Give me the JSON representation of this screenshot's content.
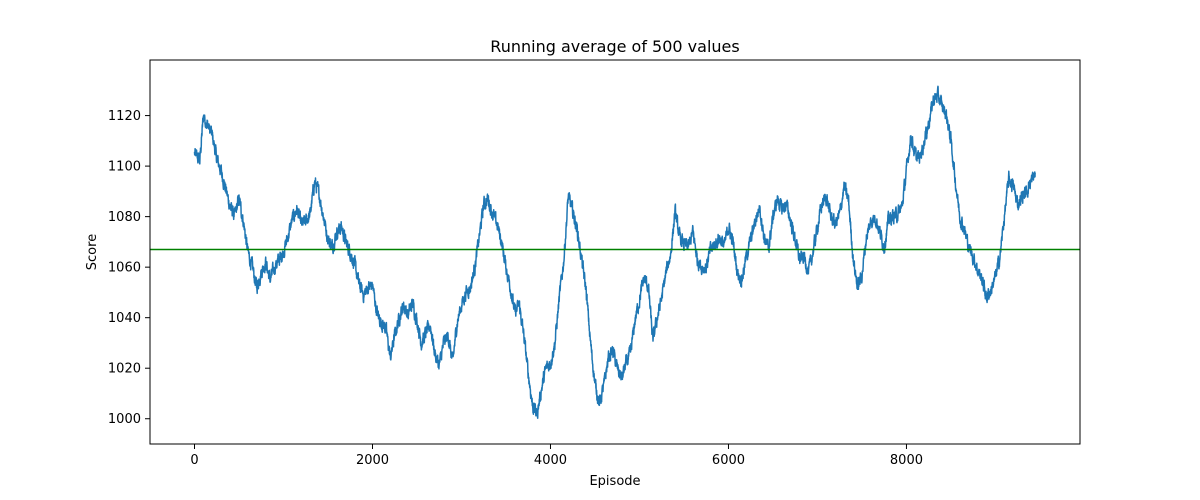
{
  "chart_data": {
    "type": "line",
    "title": "Running average of 500 values",
    "xlabel": "Episode",
    "ylabel": "Score",
    "xlim": [
      -500,
      9950
    ],
    "ylim": [
      990,
      1142
    ],
    "xticks": [
      0,
      2000,
      4000,
      6000,
      8000
    ],
    "yticks": [
      1000,
      1020,
      1040,
      1060,
      1080,
      1100,
      1120
    ],
    "grid": false,
    "legend": "none",
    "series": [
      {
        "color": "#1f77b4",
        "x": [
          0,
          60,
          100,
          150,
          200,
          250,
          300,
          350,
          400,
          450,
          500,
          550,
          600,
          650,
          700,
          750,
          800,
          850,
          900,
          950,
          1000,
          1050,
          1100,
          1150,
          1200,
          1250,
          1300,
          1350,
          1400,
          1450,
          1500,
          1550,
          1600,
          1650,
          1700,
          1750,
          1800,
          1850,
          1900,
          1950,
          2000,
          2050,
          2100,
          2150,
          2200,
          2250,
          2300,
          2350,
          2400,
          2450,
          2500,
          2550,
          2600,
          2650,
          2700,
          2750,
          2800,
          2850,
          2900,
          2950,
          3000,
          3050,
          3100,
          3150,
          3200,
          3250,
          3300,
          3350,
          3400,
          3450,
          3500,
          3550,
          3600,
          3650,
          3700,
          3750,
          3800,
          3850,
          3900,
          3950,
          4000,
          4050,
          4100,
          4150,
          4200,
          4250,
          4300,
          4350,
          4400,
          4450,
          4500,
          4550,
          4600,
          4650,
          4700,
          4750,
          4800,
          4850,
          4900,
          4950,
          5000,
          5050,
          5100,
          5150,
          5200,
          5250,
          5300,
          5350,
          5400,
          5450,
          5500,
          5550,
          5600,
          5650,
          5700,
          5750,
          5800,
          5850,
          5900,
          5950,
          6000,
          6050,
          6100,
          6150,
          6200,
          6250,
          6300,
          6350,
          6400,
          6450,
          6500,
          6550,
          6600,
          6650,
          6700,
          6750,
          6800,
          6850,
          6900,
          6950,
          7000,
          7050,
          7100,
          7150,
          7200,
          7250,
          7300,
          7350,
          7400,
          7450,
          7500,
          7550,
          7600,
          7650,
          7700,
          7750,
          7800,
          7850,
          7900,
          7950,
          8000,
          8050,
          8100,
          8150,
          8200,
          8250,
          8300,
          8350,
          8400,
          8450,
          8500,
          8550,
          8600,
          8650,
          8700,
          8750,
          8800,
          8850,
          8900,
          8950,
          9000,
          9050,
          9100,
          9150,
          9200,
          9250,
          9300,
          9350,
          9400,
          9450
        ],
        "y": [
          1105,
          1102,
          1120,
          1116,
          1112,
          1103,
          1098,
          1091,
          1084,
          1080,
          1087,
          1078,
          1066,
          1060,
          1052,
          1058,
          1062,
          1055,
          1060,
          1063,
          1066,
          1072,
          1079,
          1083,
          1077,
          1078,
          1081,
          1094,
          1089,
          1080,
          1071,
          1068,
          1074,
          1076,
          1070,
          1066,
          1061,
          1053,
          1049,
          1052,
          1053,
          1042,
          1038,
          1036,
          1024,
          1033,
          1040,
          1045,
          1041,
          1046,
          1039,
          1030,
          1034,
          1037,
          1026,
          1021,
          1030,
          1033,
          1022,
          1038,
          1045,
          1050,
          1052,
          1060,
          1072,
          1085,
          1087,
          1081,
          1077,
          1070,
          1060,
          1052,
          1042,
          1045,
          1033,
          1018,
          1005,
          1002,
          1012,
          1020,
          1022,
          1030,
          1048,
          1063,
          1088,
          1082,
          1075,
          1063,
          1051,
          1030,
          1014,
          1006,
          1013,
          1024,
          1027,
          1020,
          1016,
          1022,
          1026,
          1039,
          1047,
          1056,
          1052,
          1031,
          1040,
          1048,
          1058,
          1065,
          1082,
          1072,
          1069,
          1068,
          1074,
          1063,
          1060,
          1060,
          1067,
          1069,
          1072,
          1068,
          1076,
          1070,
          1058,
          1055,
          1064,
          1071,
          1078,
          1084,
          1072,
          1067,
          1080,
          1087,
          1083,
          1085,
          1078,
          1071,
          1063,
          1064,
          1058,
          1066,
          1076,
          1085,
          1088,
          1080,
          1077,
          1081,
          1092,
          1086,
          1064,
          1052,
          1057,
          1072,
          1078,
          1080,
          1074,
          1068,
          1079,
          1080,
          1081,
          1084,
          1098,
          1112,
          1104,
          1103,
          1110,
          1117,
          1126,
          1128,
          1124,
          1120,
          1110,
          1094,
          1080,
          1075,
          1068,
          1064,
          1059,
          1055,
          1048,
          1051,
          1056,
          1064,
          1080,
          1095,
          1092,
          1085,
          1088,
          1090,
          1094,
          1097
        ]
      }
    ],
    "hline": {
      "y": 1067,
      "color": "#008000"
    }
  }
}
